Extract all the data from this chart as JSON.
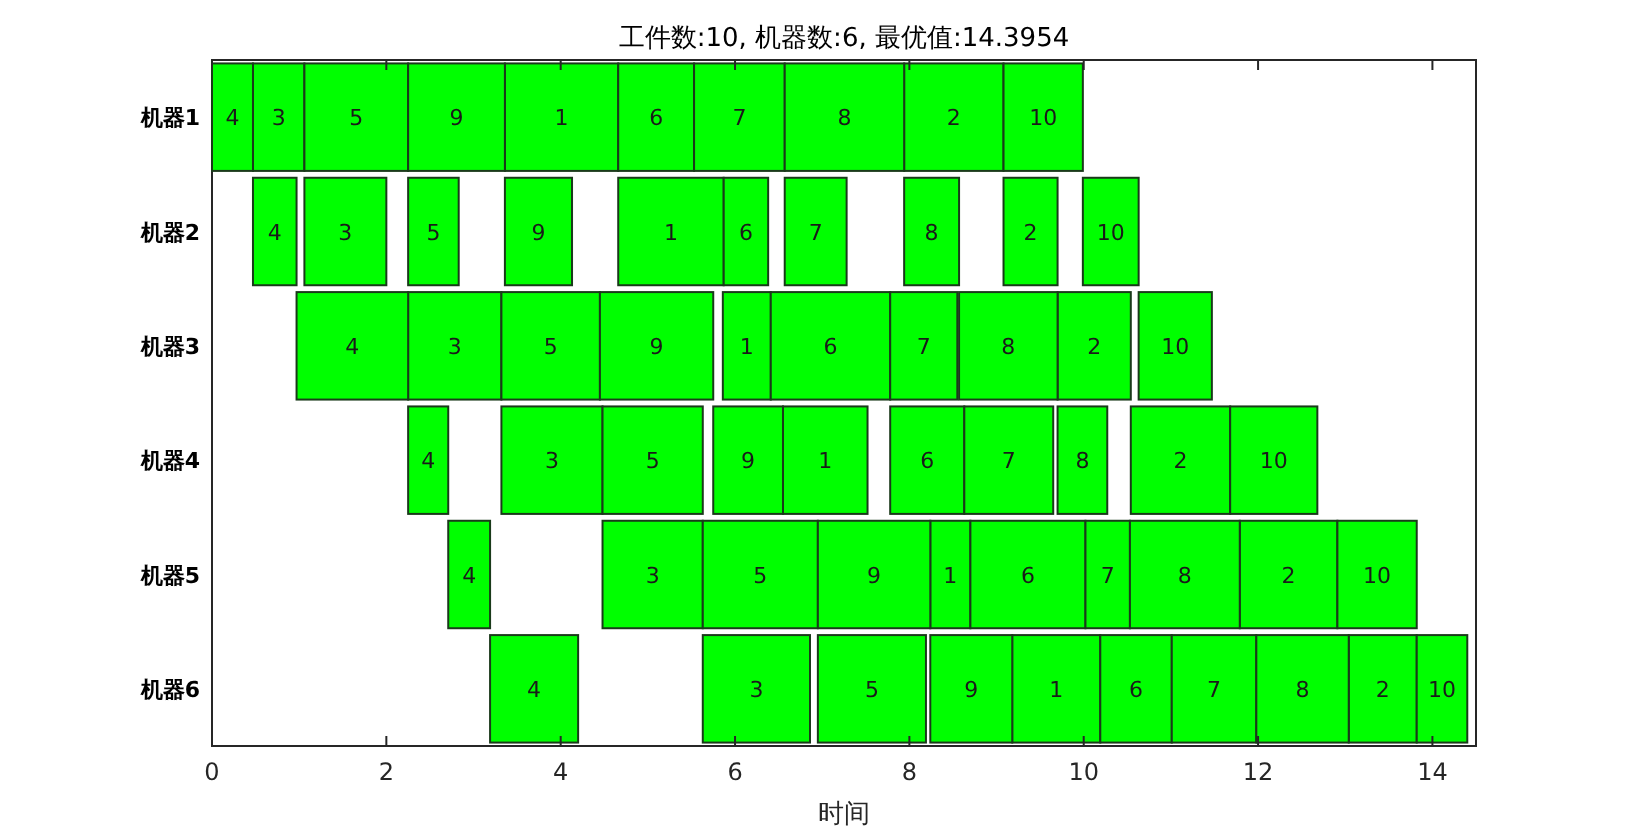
{
  "chart_data": {
    "type": "bar",
    "orientation": "horizontal",
    "title": "工件数:10, 机器数:6, 最优值:14.3954",
    "xlabel": "时间",
    "categories": [
      "机器1",
      "机器2",
      "机器3",
      "机器4",
      "机器5",
      "机器6"
    ],
    "xlim": [
      0,
      14.5
    ],
    "xticks": [
      0,
      2,
      4,
      6,
      8,
      10,
      12,
      14
    ],
    "series": [
      {
        "name": "1",
        "color": "#00ff00",
        "base": [
          3.36,
          4.66,
          5.86,
          6.55,
          8.24,
          9.18
        ],
        "values": [
          1.3,
          1.21,
          0.55,
          0.97,
          0.46,
          1.01
        ]
      },
      {
        "name": "2",
        "color": "#00ff00",
        "base": [
          7.94,
          9.08,
          9.7,
          10.54,
          11.79,
          13.04
        ],
        "values": [
          1.14,
          0.62,
          0.84,
          1.14,
          1.12,
          0.78
        ]
      },
      {
        "name": "3",
        "color": "#00ff00",
        "base": [
          0.47,
          1.06,
          2.25,
          3.32,
          4.48,
          5.63
        ],
        "values": [
          0.59,
          0.94,
          1.07,
          1.16,
          1.15,
          1.23
        ]
      },
      {
        "name": "4",
        "color": "#00ff00",
        "base": [
          0,
          0.47,
          0.97,
          2.25,
          2.71,
          3.19
        ],
        "values": [
          0.47,
          0.5,
          1.28,
          0.46,
          0.48,
          1.01
        ]
      },
      {
        "name": "5",
        "color": "#00ff00",
        "base": [
          1.06,
          2.25,
          3.32,
          4.48,
          5.63,
          6.95
        ],
        "values": [
          1.19,
          0.58,
          1.13,
          1.15,
          1.32,
          1.24
        ]
      },
      {
        "name": "6",
        "color": "#00ff00",
        "base": [
          4.66,
          5.87,
          6.41,
          7.78,
          8.7,
          10.19
        ],
        "values": [
          0.87,
          0.51,
          1.37,
          0.85,
          1.32,
          0.82
        ]
      },
      {
        "name": "7",
        "color": "#00ff00",
        "base": [
          5.53,
          6.57,
          7.78,
          8.63,
          10.02,
          11.01
        ],
        "values": [
          1.04,
          0.71,
          0.77,
          1.02,
          0.51,
          0.97
        ]
      },
      {
        "name": "8",
        "color": "#00ff00",
        "base": [
          6.57,
          7.94,
          8.57,
          9.7,
          10.53,
          11.98
        ],
        "values": [
          1.37,
          0.63,
          1.13,
          0.57,
          1.26,
          1.06
        ]
      },
      {
        "name": "9",
        "color": "#00ff00",
        "base": [
          2.25,
          3.36,
          4.45,
          5.75,
          6.95,
          8.24
        ],
        "values": [
          1.11,
          0.77,
          1.3,
          0.8,
          1.29,
          0.94
        ]
      },
      {
        "name": "10",
        "color": "#00ff00",
        "base": [
          9.08,
          9.99,
          10.63,
          11.68,
          12.91,
          13.82
        ],
        "values": [
          0.91,
          0.64,
          0.84,
          1.0,
          0.91,
          0.58
        ]
      }
    ]
  }
}
